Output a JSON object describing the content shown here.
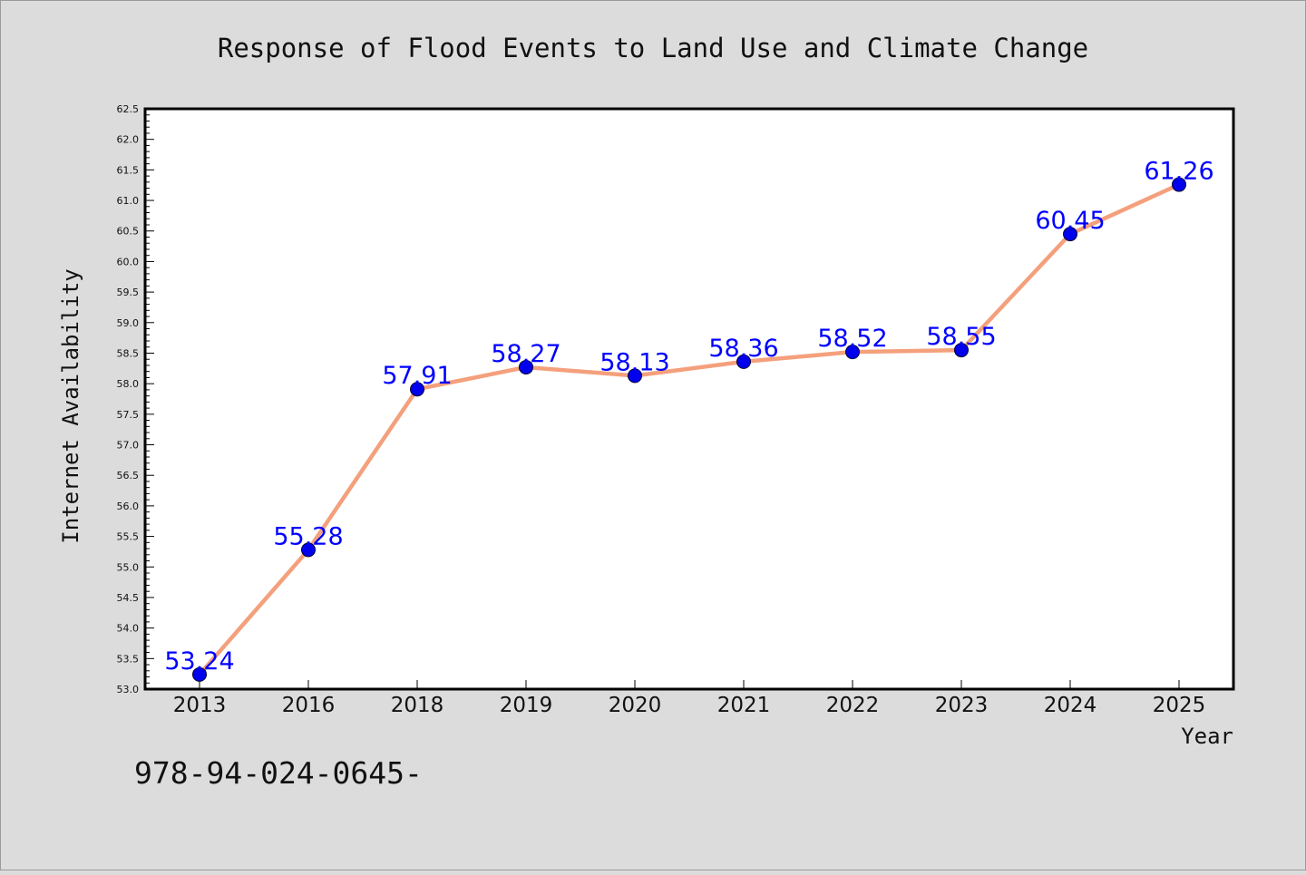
{
  "chart_data": {
    "type": "line",
    "title": "Response of Flood Events to Land Use and Climate Change",
    "xlabel": "Year",
    "ylabel": "Internet Availability",
    "categories": [
      "2013",
      "2016",
      "2018",
      "2019",
      "2020",
      "2021",
      "2022",
      "2023",
      "2024",
      "2025"
    ],
    "series": [
      {
        "values": [
          53.24,
          55.28,
          57.91,
          58.27,
          58.13,
          58.36,
          58.52,
          58.55,
          60.45,
          61.26
        ],
        "data_labels": [
          "53.24",
          "55.28",
          "57.91",
          "58.27",
          "58.13",
          "58.36",
          "58.52",
          "58.55",
          "60.45",
          "61.26"
        ]
      }
    ],
    "ylim": [
      53.0,
      62.5
    ],
    "y_ticks": [
      "53.0",
      "53.5",
      "54.0",
      "54.5",
      "55.0",
      "55.5",
      "56.0",
      "56.5",
      "57.0",
      "57.5",
      "58.0",
      "58.5",
      "59.0",
      "59.5",
      "60.0",
      "60.5",
      "61.0",
      "61.5",
      "62.0",
      "62.5"
    ],
    "grid": false,
    "legend": "none",
    "line_color": "#f4a07c",
    "marker_color": "#0000ee",
    "label_color": "#0000ff",
    "background_color": "#dcdcdc",
    "plot_background_color": "#ffffff"
  },
  "footer": {
    "isbn_text": "978-94-024-0645-"
  }
}
